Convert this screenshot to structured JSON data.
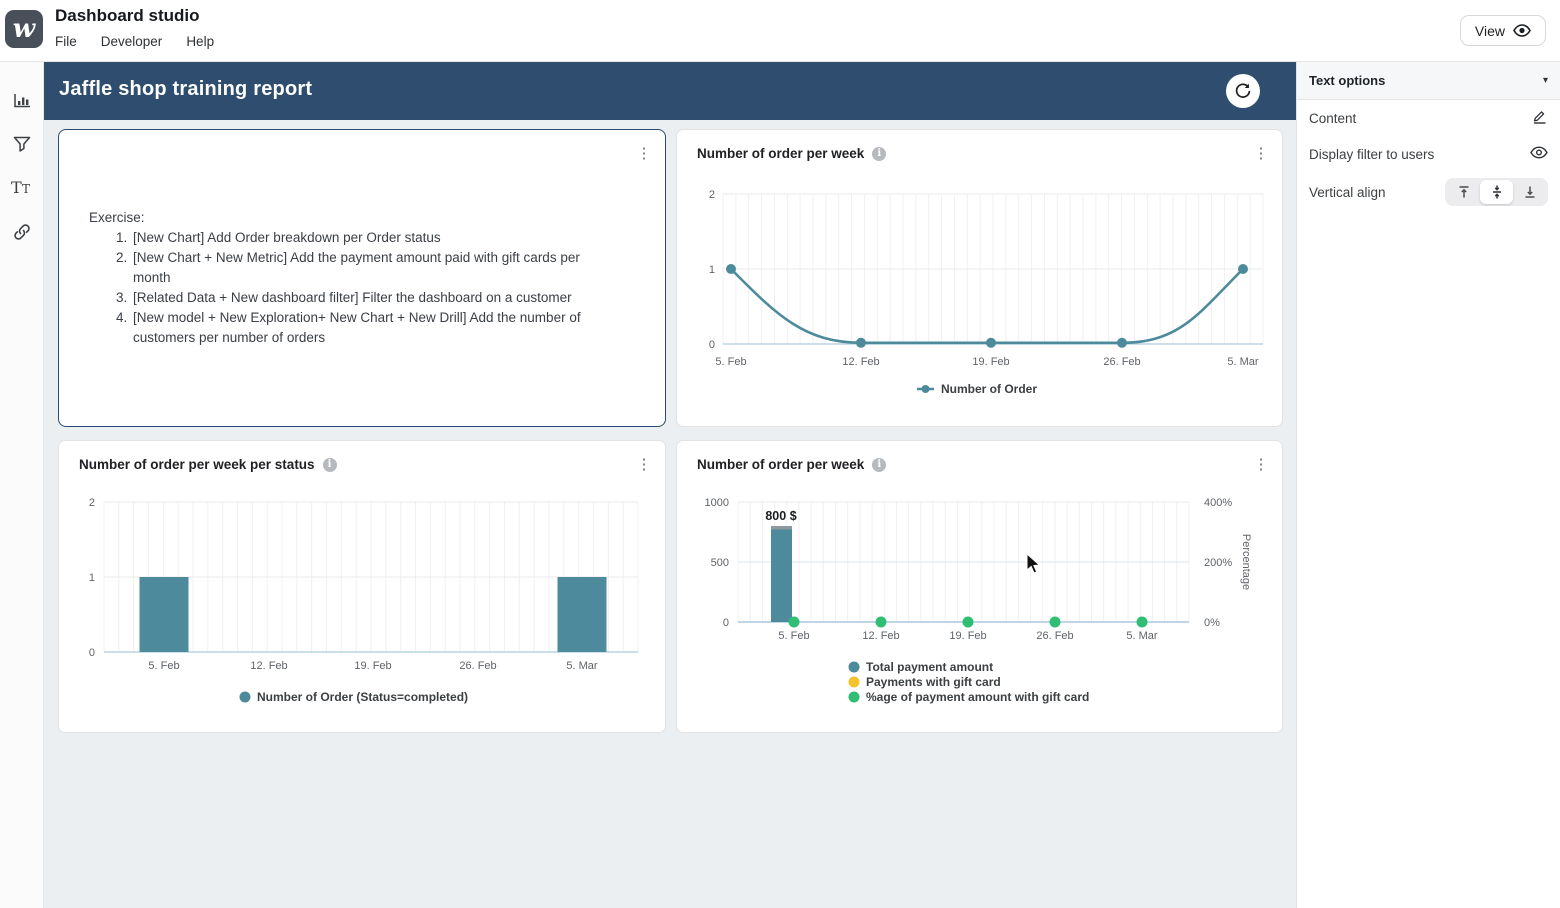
{
  "topbar": {
    "app_title": "Dashboard studio",
    "menu": [
      "File",
      "Developer",
      "Help"
    ],
    "view_button": "View"
  },
  "sidebar": {
    "items": [
      {
        "icon": "bar-chart-icon",
        "name": "charts"
      },
      {
        "icon": "funnel-filter-icon",
        "name": "filters"
      },
      {
        "icon": "text-icon",
        "name": "text"
      },
      {
        "icon": "link-icon",
        "name": "links"
      }
    ]
  },
  "dashboard": {
    "title": "Jaffle shop training report"
  },
  "text_card": {
    "intro": "Exercise:",
    "items": [
      "[New Chart] Add Order breakdown per Order status",
      "[New Chart + New Metric] Add the payment amount paid with gift cards per month",
      "[Related Data + New dashboard filter] Filter the dashboard on a customer",
      "[New model + New Exploration+ New Chart + New Drill] Add the number of customers per number of orders"
    ]
  },
  "panel": {
    "title": "Text options",
    "rows": [
      {
        "label": "Content",
        "icon": "edit-icon"
      },
      {
        "label": "Display filter to users",
        "icon": "eye-icon"
      },
      {
        "label": "Vertical align",
        "options": [
          "top",
          "middle",
          "bottom"
        ],
        "selected": "middle"
      }
    ]
  },
  "colors": {
    "header_blue": "#2f4e6f",
    "teal": "#4d8a9b",
    "yellow": "#f3c32c",
    "green": "#2fbe73"
  },
  "chart_data": [
    {
      "type": "line",
      "title": "Number of order per week",
      "x": [
        "5. Feb",
        "12. Feb",
        "19. Feb",
        "26. Feb",
        "5. Mar"
      ],
      "series": [
        {
          "name": "Number of Order",
          "values": [
            1,
            0,
            0,
            0,
            1
          ],
          "color": "#4d8a9b"
        }
      ],
      "ylim": [
        0,
        2
      ],
      "yticks": [
        0,
        1,
        2
      ],
      "grid": true,
      "legend_position": "bottom"
    },
    {
      "type": "bar",
      "title": "Number of order per week per status",
      "x": [
        "5. Feb",
        "12. Feb",
        "19. Feb",
        "26. Feb",
        "5. Mar"
      ],
      "series": [
        {
          "name": "Number of Order (Status=completed)",
          "values": [
            1,
            0,
            0,
            0,
            1
          ],
          "color": "#4d8a9b"
        }
      ],
      "ylim": [
        0,
        2
      ],
      "yticks": [
        0,
        1,
        2
      ],
      "grid": true,
      "legend_position": "bottom"
    },
    {
      "type": "combo",
      "title": "Number of order per week",
      "x": [
        "5. Feb",
        "12. Feb",
        "19. Feb",
        "26. Feb",
        "5. Mar"
      ],
      "series": [
        {
          "type": "bar",
          "name": "Total payment amount",
          "values": [
            800,
            0,
            0,
            0,
            0
          ],
          "color": "#4d8a9b",
          "axis": "left",
          "value_label": "800 $"
        },
        {
          "type": "bar",
          "name": "Payments with gift card",
          "values": [
            0,
            0,
            0,
            0,
            0
          ],
          "color": "#f3c32c",
          "axis": "left"
        },
        {
          "type": "line",
          "name": "%age of payment amount with gift card",
          "values": [
            0,
            0,
            0,
            0,
            0
          ],
          "color": "#2fbe73",
          "axis": "right"
        }
      ],
      "left_axis": {
        "lim": [
          0,
          1000
        ],
        "tick_labels": [
          "0",
          "500",
          "1000"
        ]
      },
      "right_axis": {
        "lim": [
          0,
          4
        ],
        "tick_labels": [
          "0%",
          "200%",
          "400%"
        ],
        "label": "Percentage"
      },
      "grid": true,
      "legend_position": "bottom"
    }
  ]
}
